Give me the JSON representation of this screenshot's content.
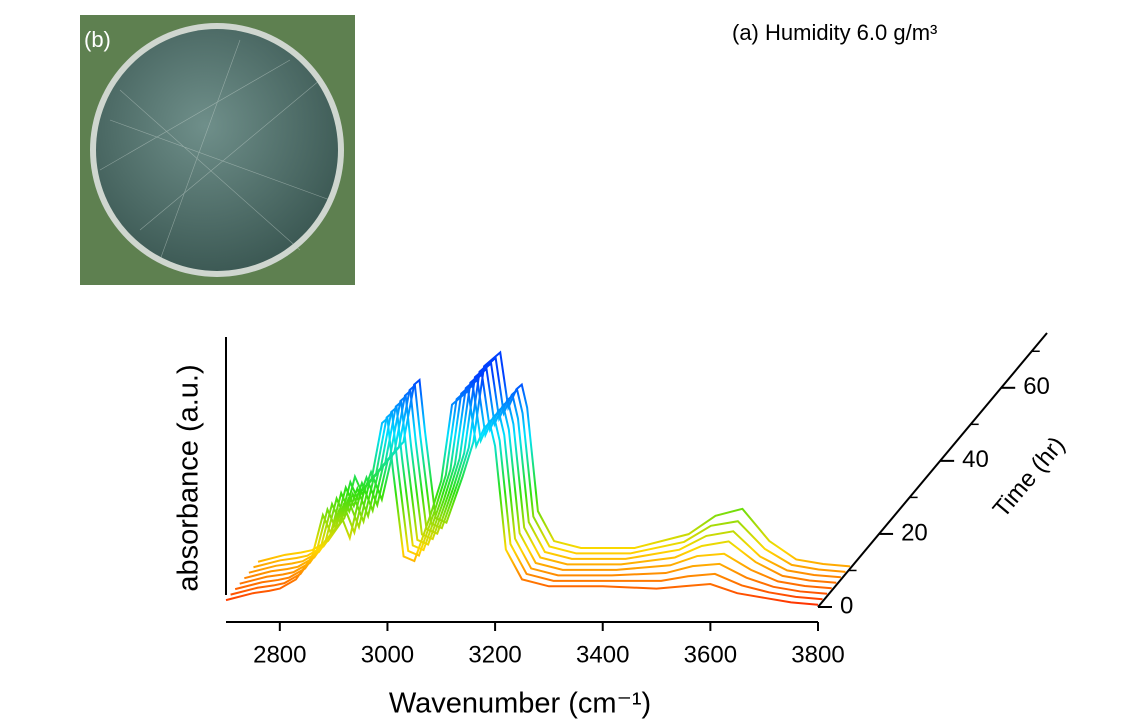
{
  "chart_data": {
    "type": "waterfall",
    "title": "(a) Humidity 6.0 g/m³",
    "xlabel": "Wavenumber (cm⁻¹)",
    "ylabel": "absorbance (a.u.)",
    "zlabel": "Time (hr)",
    "xlim": [
      2700,
      3800
    ],
    "xticks": [
      2800,
      3000,
      3200,
      3400,
      3600,
      3800
    ],
    "ylim": [
      0,
      1
    ],
    "zlim": [
      0,
      75
    ],
    "zticks": [
      0,
      20,
      40,
      60
    ],
    "zminor": [
      10,
      30,
      50,
      70
    ],
    "colormap": [
      "#ff2a00",
      "#ffd800",
      "#30e010",
      "#00e0ff",
      "#0040ff"
    ],
    "x": [
      2700,
      2750,
      2780,
      2800,
      2830,
      2860,
      2880,
      2895,
      2910,
      2930,
      2950,
      2970,
      2990,
      3000,
      3010,
      3030,
      3050,
      3080,
      3100,
      3120,
      3140,
      3150,
      3165,
      3180,
      3190,
      3200,
      3220,
      3250,
      3300,
      3400,
      3500,
      3550,
      3600,
      3650,
      3700,
      3750,
      3800
    ],
    "series": [
      {
        "z": 0,
        "values": [
          0.03,
          0.06,
          0.07,
          0.08,
          0.12,
          0.22,
          0.4,
          0.32,
          0.42,
          0.3,
          0.5,
          0.55,
          0.8,
          0.82,
          0.6,
          0.22,
          0.2,
          0.4,
          0.55,
          0.88,
          0.92,
          0.94,
          0.7,
          0.78,
          0.8,
          0.7,
          0.25,
          0.12,
          0.09,
          0.09,
          0.08,
          0.09,
          0.1,
          0.06,
          0.04,
          0.02,
          0.01
        ]
      },
      {
        "z": 1.5,
        "values": [
          0.03,
          0.06,
          0.07,
          0.08,
          0.12,
          0.22,
          0.4,
          0.32,
          0.42,
          0.3,
          0.5,
          0.55,
          0.8,
          0.82,
          0.6,
          0.22,
          0.2,
          0.4,
          0.55,
          0.88,
          0.92,
          0.94,
          0.7,
          0.78,
          0.8,
          0.7,
          0.25,
          0.12,
          0.09,
          0.09,
          0.09,
          0.11,
          0.12,
          0.07,
          0.04,
          0.02,
          0.01
        ]
      },
      {
        "z": 3,
        "values": [
          0.03,
          0.06,
          0.07,
          0.08,
          0.12,
          0.22,
          0.4,
          0.32,
          0.42,
          0.3,
          0.5,
          0.55,
          0.8,
          0.82,
          0.6,
          0.22,
          0.2,
          0.4,
          0.55,
          0.88,
          0.92,
          0.94,
          0.7,
          0.78,
          0.8,
          0.7,
          0.25,
          0.12,
          0.09,
          0.09,
          0.1,
          0.13,
          0.14,
          0.08,
          0.04,
          0.02,
          0.01
        ]
      },
      {
        "z": 4.5,
        "values": [
          0.03,
          0.06,
          0.07,
          0.08,
          0.12,
          0.22,
          0.4,
          0.32,
          0.42,
          0.3,
          0.5,
          0.55,
          0.8,
          0.82,
          0.6,
          0.22,
          0.2,
          0.4,
          0.55,
          0.88,
          0.92,
          0.94,
          0.7,
          0.78,
          0.8,
          0.7,
          0.25,
          0.12,
          0.09,
          0.09,
          0.11,
          0.15,
          0.16,
          0.09,
          0.04,
          0.02,
          0.01
        ]
      },
      {
        "z": 6,
        "values": [
          0.03,
          0.06,
          0.07,
          0.08,
          0.12,
          0.22,
          0.4,
          0.32,
          0.42,
          0.3,
          0.5,
          0.55,
          0.8,
          0.82,
          0.6,
          0.22,
          0.2,
          0.4,
          0.55,
          0.88,
          0.92,
          0.94,
          0.7,
          0.78,
          0.8,
          0.7,
          0.25,
          0.12,
          0.09,
          0.09,
          0.12,
          0.17,
          0.19,
          0.1,
          0.04,
          0.02,
          0.01
        ]
      },
      {
        "z": 7.5,
        "values": [
          0.03,
          0.06,
          0.07,
          0.08,
          0.12,
          0.22,
          0.4,
          0.32,
          0.42,
          0.3,
          0.5,
          0.55,
          0.8,
          0.82,
          0.6,
          0.22,
          0.2,
          0.4,
          0.55,
          0.88,
          0.92,
          0.94,
          0.7,
          0.78,
          0.8,
          0.7,
          0.25,
          0.12,
          0.09,
          0.09,
          0.13,
          0.19,
          0.21,
          0.1,
          0.04,
          0.02,
          0.01
        ]
      },
      {
        "z": 9,
        "values": [
          0.03,
          0.06,
          0.07,
          0.08,
          0.12,
          0.22,
          0.4,
          0.32,
          0.42,
          0.3,
          0.5,
          0.55,
          0.8,
          0.82,
          0.6,
          0.22,
          0.2,
          0.4,
          0.55,
          0.88,
          0.92,
          0.94,
          0.7,
          0.78,
          0.8,
          0.7,
          0.25,
          0.12,
          0.09,
          0.09,
          0.14,
          0.21,
          0.23,
          0.11,
          0.04,
          0.02,
          0.01
        ]
      },
      {
        "z": 10.5,
        "values": [
          0.03,
          0.06,
          0.07,
          0.08,
          0.12,
          0.22,
          0.4,
          0.32,
          0.42,
          0.3,
          0.5,
          0.55,
          0.8,
          0.82,
          0.6,
          0.22,
          0.2,
          0.4,
          0.55,
          0.88,
          0.92,
          0.94,
          0.7,
          0.78,
          0.8,
          0.7,
          0.25,
          0.12,
          0.09,
          0.09,
          0.15,
          0.23,
          0.26,
          0.12,
          0.04,
          0.02,
          0.01
        ]
      }
    ]
  },
  "photo": {
    "label": "(b)"
  }
}
